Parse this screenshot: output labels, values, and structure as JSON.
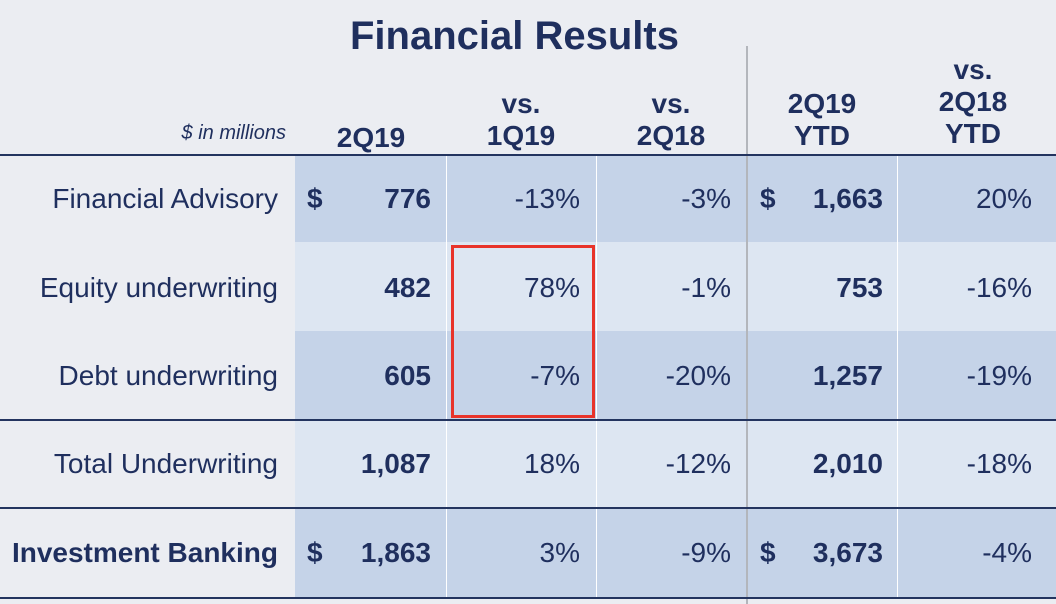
{
  "title": "Financial Results",
  "units_label": "$ in millions",
  "columns": [
    {
      "line1": "",
      "line2": "2Q19"
    },
    {
      "line1": "vs.",
      "line2": "1Q19"
    },
    {
      "line1": "vs.",
      "line2": "2Q18"
    },
    {
      "line1": "2Q19",
      "line2": "YTD"
    },
    {
      "line1": "vs.",
      "line2": "2Q18",
      "line3": "YTD"
    }
  ],
  "rows": [
    {
      "label": "Financial Advisory",
      "dollar_q": "$",
      "q": "776",
      "vs_1q19": "-13%",
      "vs_2q18": "-3%",
      "dollar_ytd": "$",
      "ytd": "1,663",
      "vs_ytd": "20%"
    },
    {
      "label": "Equity underwriting",
      "q": "482",
      "vs_1q19": "78%",
      "vs_2q18": "-1%",
      "ytd": "753",
      "vs_ytd": "-16%"
    },
    {
      "label": "Debt underwriting",
      "q": "605",
      "vs_1q19": "-7%",
      "vs_2q18": "-20%",
      "ytd": "1,257",
      "vs_ytd": "-19%"
    },
    {
      "label": "Total Underwriting",
      "q": "1,087",
      "vs_1q19": "18%",
      "vs_2q18": "-12%",
      "ytd": "2,010",
      "vs_ytd": "-18%"
    },
    {
      "label": "Investment Banking",
      "dollar_q": "$",
      "q": "1,863",
      "vs_1q19": "3%",
      "vs_2q18": "-9%",
      "dollar_ytd": "$",
      "ytd": "3,673",
      "vs_ytd": "-4%"
    }
  ],
  "colors": {
    "navy": "#1f2f5e",
    "band_dark": "#c5d3e8",
    "band_light": "#dde6f2",
    "highlight_border": "#e8332a"
  }
}
